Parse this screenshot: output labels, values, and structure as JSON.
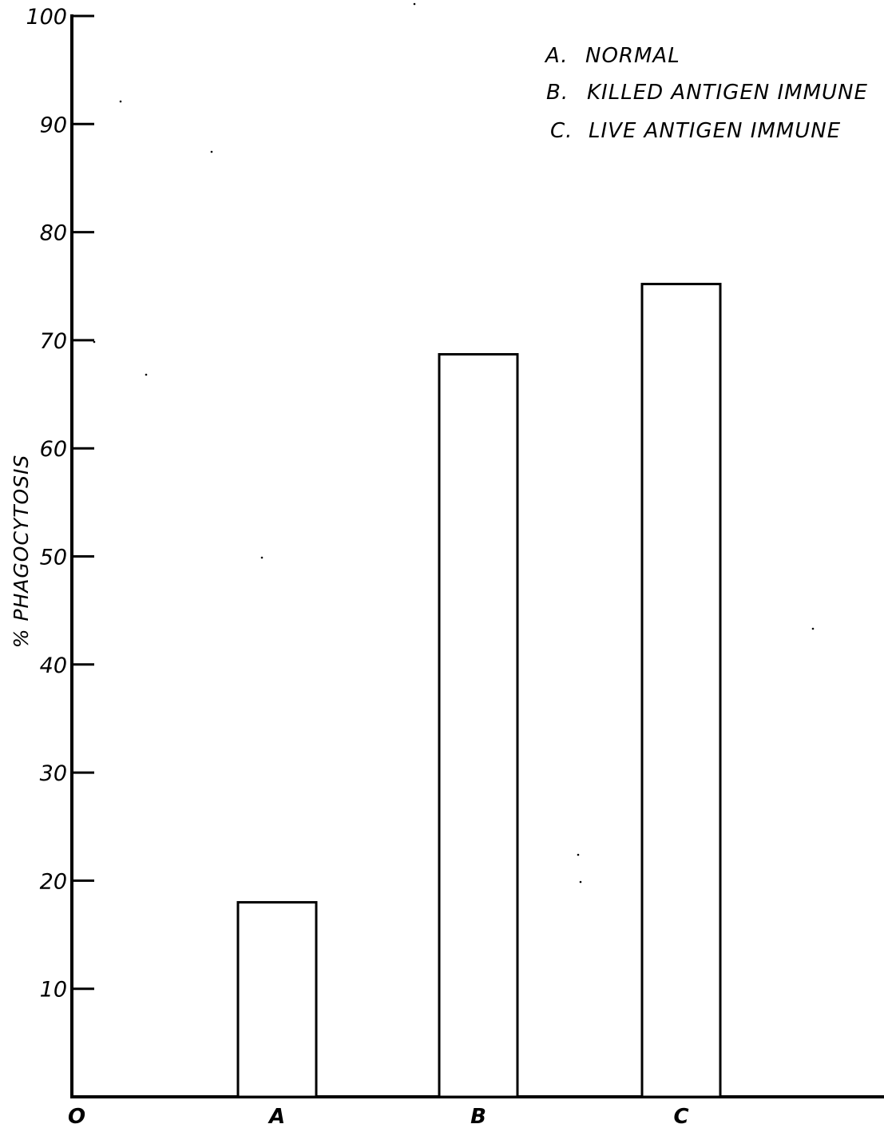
{
  "chart_data": {
    "type": "bar",
    "categories": [
      "A",
      "B",
      "C"
    ],
    "values": [
      18,
      68.7,
      75.2
    ],
    "origin_label": "O",
    "ylabel": "% PHAGOCYTOSIS",
    "xlabel": "",
    "title": "",
    "ylim": [
      0,
      100
    ],
    "yticks": [
      10,
      20,
      30,
      40,
      50,
      60,
      70,
      80,
      90,
      100
    ],
    "ytick_labels": [
      "10",
      "20",
      "30",
      "40",
      "50",
      "60",
      "70",
      "80",
      "90",
      "100"
    ],
    "grid": false,
    "legend_position": "top-right",
    "legend": [
      {
        "key": "A.",
        "label": "NORMAL"
      },
      {
        "key": "B.",
        "label": "KILLED ANTIGEN IMMUNE"
      },
      {
        "key": "C.",
        "label": "LIVE ANTIGEN IMMUNE"
      }
    ],
    "colors": {
      "bar_fill": "#ffffff",
      "bar_stroke": "#000000",
      "axis": "#000000"
    }
  }
}
